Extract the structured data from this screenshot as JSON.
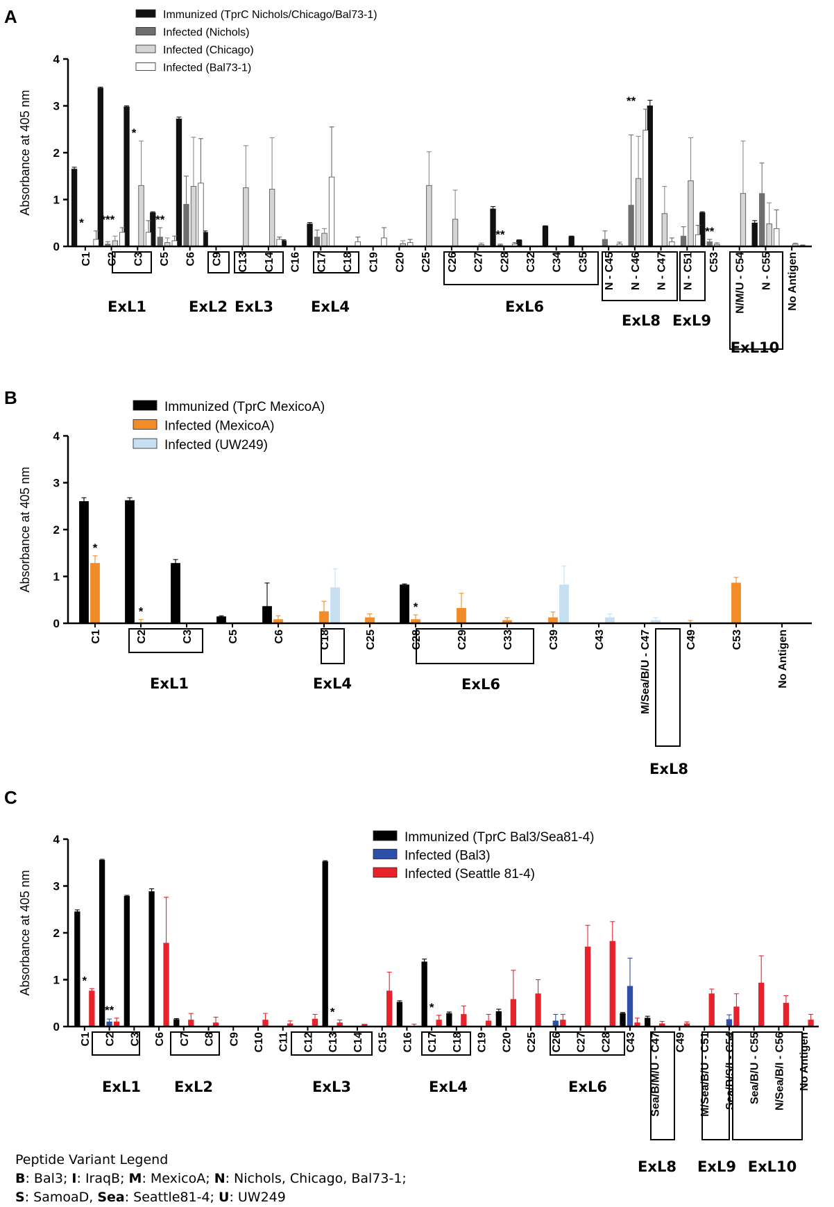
{
  "chart_data": [
    {
      "type": "bar",
      "panel_label": "A",
      "ylabel": "Absorbance at 405 nm",
      "ylim": [
        0,
        4
      ],
      "yticks": [
        "0",
        "1",
        "2",
        "3",
        "4"
      ],
      "series": [
        {
          "name": "Immunized (TprC Nichols/Chicago/Bal73-1)",
          "color": "#111111",
          "values": [
            1.65,
            3.38,
            2.98,
            0.72,
            2.72,
            0.3,
            0,
            0,
            0.12,
            0.48,
            0,
            0,
            0,
            0,
            0,
            0,
            0.8,
            0.13,
            0.43,
            0.21,
            0,
            0,
            3.0,
            0,
            0.72,
            0,
            0.5,
            0
          ]
        },
        {
          "name": "Infected (Nichols)",
          "color": "#6e6e6e",
          "values": [
            0,
            0.05,
            0,
            0.2,
            0.9,
            0,
            0,
            0,
            0,
            0.2,
            0,
            0,
            0,
            0,
            0,
            0,
            0.03,
            0,
            0,
            0,
            0.15,
            0.88,
            0,
            0.22,
            0.1,
            0,
            1.13,
            0
          ]
        },
        {
          "name": "Infected (Chicago)",
          "color": "#d5d5d5",
          "values": [
            0,
            0.12,
            1.3,
            0.08,
            1.28,
            0,
            1.25,
            1.22,
            0,
            0.28,
            0,
            0,
            0.06,
            1.3,
            0.58,
            0.04,
            0,
            0,
            0,
            0,
            0,
            1.45,
            0.7,
            1.4,
            0.05,
            1.13,
            0.48,
            0.05
          ]
        },
        {
          "name": "Infected (Bal73-1)",
          "color": "#ffffff",
          "values": [
            0.15,
            0.3,
            0.3,
            0.12,
            1.35,
            0,
            0,
            0.15,
            0,
            1.48,
            0.1,
            0.18,
            0.08,
            0,
            0,
            0,
            0.05,
            0,
            0,
            0,
            0.05,
            2.48,
            0.1,
            0.25,
            0,
            0,
            0.38,
            0.02
          ]
        }
      ],
      "err": [
        [
          0.04,
          0.02,
          0.02,
          0.02,
          0.04,
          0.03,
          0,
          0,
          0.02,
          0.03,
          0,
          0,
          0,
          0,
          0,
          0,
          0.05,
          0.01,
          0.01,
          0.01,
          0,
          0,
          0.12,
          0,
          0.02,
          0,
          0.05,
          0
        ],
        [
          0,
          0.05,
          0,
          0.2,
          0.6,
          0,
          0,
          0,
          0,
          0.15,
          0,
          0,
          0,
          0,
          0,
          0,
          0.02,
          0,
          0,
          0,
          0.18,
          1.5,
          0,
          0.2,
          0.05,
          0,
          0.65,
          0
        ],
        [
          0,
          0.1,
          0.95,
          0.1,
          1.05,
          0,
          0.9,
          1.1,
          0,
          0.1,
          0,
          0,
          0.06,
          0.72,
          0.62,
          0.03,
          0,
          0,
          0,
          0,
          0,
          0.9,
          0.58,
          0.92,
          0.03,
          1.12,
          0.45,
          0.02
        ],
        [
          0.18,
          0.1,
          0.25,
          0.1,
          0.95,
          0,
          0,
          0.05,
          0,
          1.07,
          0.1,
          0.22,
          0.07,
          0,
          0,
          0,
          0.03,
          0,
          0,
          0,
          0.04,
          0.45,
          0.08,
          0.2,
          0,
          0,
          0.4,
          0.01
        ]
      ],
      "categories": [
        "C1",
        "C2",
        "C3",
        "C5",
        "C6",
        "C9",
        "C13",
        "C14",
        "C16",
        "C17",
        "C18",
        "C19",
        "C20",
        "C25",
        "C26",
        "C27",
        "C28",
        "C32",
        "C34",
        "C35",
        "N - C45",
        "N - C46",
        "N - C47",
        "N - C51",
        "C53",
        "N/M/U - C54",
        "N - C55",
        "No Antigen"
      ],
      "significance": [
        {
          "label": "*",
          "index": 0
        },
        {
          "label": "***",
          "index": 1
        },
        {
          "label": "*",
          "index": 2
        },
        {
          "label": "**",
          "index": 3
        },
        {
          "label": "**",
          "index": 16
        },
        {
          "label": "**",
          "index": 21
        },
        {
          "label": "**",
          "index": 24
        }
      ],
      "loops": [
        "ExL1",
        "ExL2",
        "ExL3",
        "ExL4",
        "ExL6",
        "ExL8",
        "ExL9",
        "ExL10"
      ]
    },
    {
      "type": "bar",
      "panel_label": "B",
      "ylabel": "Absorbance at 405 nm",
      "ylim": [
        0,
        4
      ],
      "yticks": [
        "0",
        "1",
        "2",
        "3",
        "4"
      ],
      "series": [
        {
          "name": "Immunized (TprC MexicoA)",
          "color": "#000000",
          "values": [
            2.6,
            2.62,
            1.28,
            0.14,
            0.36,
            0,
            0,
            0.82,
            0,
            0,
            0,
            0,
            0,
            0,
            0,
            0
          ]
        },
        {
          "name": "Infected (MexicoA)",
          "color": "#f28c28",
          "values": [
            1.28,
            0,
            0,
            0,
            0.08,
            0.25,
            0.12,
            0.08,
            0.32,
            0.06,
            0.12,
            0,
            0,
            0,
            0.86,
            0
          ]
        },
        {
          "name": "Infected (UW249)",
          "color": "#c7dff2",
          "values": [
            0,
            0,
            0,
            0,
            0,
            0.76,
            0,
            0,
            0,
            0,
            0.82,
            0.12,
            0.06,
            0,
            0,
            0
          ]
        }
      ],
      "err": [
        [
          0.08,
          0.06,
          0.08,
          0.02,
          0.5,
          0,
          0,
          0.02,
          0,
          0,
          0,
          0,
          0,
          0,
          0,
          0
        ],
        [
          0.16,
          0.08,
          0,
          0,
          0.08,
          0.22,
          0.08,
          0.1,
          0.32,
          0.06,
          0.12,
          0,
          0,
          0.06,
          0.12,
          0
        ],
        [
          0,
          0,
          0,
          0,
          0,
          0.4,
          0,
          0,
          0,
          0,
          0.4,
          0.08,
          0.06,
          0,
          0,
          0
        ]
      ],
      "categories": [
        "C1",
        "C2",
        "C3",
        "C5",
        "C6",
        "C18",
        "C25",
        "C28",
        "C29",
        "C33",
        "C39",
        "C43",
        "M/Sea/B/U - C47",
        "C49",
        "C53",
        "No Antigen"
      ],
      "significance": [
        {
          "label": "*",
          "index": 0
        },
        {
          "label": "*",
          "index": 1
        },
        {
          "label": "*",
          "index": 7
        }
      ],
      "loops": [
        "ExL1",
        "ExL4",
        "ExL6",
        "ExL8"
      ]
    },
    {
      "type": "bar",
      "panel_label": "C",
      "ylabel": "Absorbance at 405 nm",
      "ylim": [
        0,
        4
      ],
      "yticks": [
        "0",
        "1",
        "2",
        "3",
        "4"
      ],
      "series": [
        {
          "name": "Immunized (TprC Bal3/Sea81-4)",
          "color": "#000000",
          "values": [
            2.45,
            3.55,
            2.78,
            2.88,
            0.15,
            0,
            0,
            0,
            0,
            0,
            3.52,
            0,
            0,
            0.52,
            1.38,
            0.28,
            0,
            0.32,
            0,
            0,
            0,
            0,
            0.28,
            0.18,
            0,
            0,
            0,
            0,
            0,
            0
          ]
        },
        {
          "name": "Infected (Bal3)",
          "color": "#2e4fa8",
          "values": [
            0,
            0.1,
            0,
            0,
            0,
            0,
            0,
            0,
            0,
            0,
            0,
            0,
            0,
            0,
            0,
            0,
            0,
            0,
            0,
            0.12,
            0,
            0,
            0.86,
            0,
            0,
            0,
            0.15,
            0,
            0,
            0
          ]
        },
        {
          "name": "Infected (Seattle 81-4)",
          "color": "#e8222b",
          "values": [
            0.76,
            0.1,
            0,
            1.78,
            0.14,
            0.08,
            0,
            0.14,
            0.06,
            0.16,
            0.08,
            0.05,
            0.76,
            0,
            0.14,
            0.26,
            0.12,
            0.58,
            0.7,
            0.14,
            1.7,
            1.82,
            0.08,
            0.06,
            0.06,
            0.7,
            0.42,
            0.93,
            0.5,
            0.14
          ]
        }
      ],
      "err": [
        [
          0.04,
          0.02,
          0.02,
          0.06,
          0.02,
          0,
          0,
          0,
          0,
          0,
          0.02,
          0,
          0,
          0.03,
          0.06,
          0.03,
          0,
          0.05,
          0,
          0,
          0,
          0,
          0.02,
          0.04,
          0,
          0,
          0,
          0,
          0,
          0
        ],
        [
          0,
          0.06,
          0,
          0,
          0,
          0,
          0,
          0,
          0,
          0,
          0,
          0,
          0,
          0,
          0,
          0,
          0,
          0,
          0,
          0.14,
          0,
          0,
          0.6,
          0,
          0,
          0,
          0.1,
          0,
          0,
          0
        ],
        [
          0.05,
          0.08,
          0,
          0.98,
          0.14,
          0.12,
          0,
          0.14,
          0.06,
          0.1,
          0.06,
          0,
          0.4,
          0.05,
          0.1,
          0.18,
          0.14,
          0.62,
          0.3,
          0.12,
          0.46,
          0.42,
          0.1,
          0.05,
          0.04,
          0.1,
          0.28,
          0.58,
          0.16,
          0.12
        ]
      ],
      "categories": [
        "C1",
        "C2",
        "C3",
        "C6",
        "C7",
        "C8",
        "C9",
        "C10",
        "C11",
        "C12",
        "C13",
        "C14",
        "C15",
        "C16",
        "C17",
        "C18",
        "C19",
        "C20",
        "C25",
        "C26",
        "C27",
        "C28",
        "C43",
        "Sea/B/M/U - C47",
        "C49",
        "M/Sea/B/U - C51",
        "Sea/B/S/I - C54",
        "Sea/B/U - C55",
        "N/Sea/B/I - C56",
        "No Antigen"
      ],
      "significance": [
        {
          "label": "*",
          "index": 0
        },
        {
          "label": "**",
          "index": 1
        },
        {
          "label": "*",
          "index": 10
        },
        {
          "label": "*",
          "index": 14
        }
      ],
      "loops": [
        "ExL1",
        "ExL2",
        "ExL3",
        "ExL4",
        "ExL6",
        "ExL8",
        "ExL9",
        "ExL10"
      ]
    }
  ],
  "variant_legend": {
    "title": "Peptide Variant Legend",
    "line1": [
      {
        "key": "B",
        "text": ": Bal3; "
      },
      {
        "key": "I",
        "text": ": IraqB; "
      },
      {
        "key": "M",
        "text": ": MexicoA; "
      },
      {
        "key": "N",
        "text": ": Nichols, Chicago, Bal73-1;"
      }
    ],
    "line2": [
      {
        "key": "S",
        "text": ":  SamoaD, "
      },
      {
        "key": "Sea",
        "text": ": Seattle81-4; "
      },
      {
        "key": "U",
        "text": ": UW249"
      }
    ]
  }
}
